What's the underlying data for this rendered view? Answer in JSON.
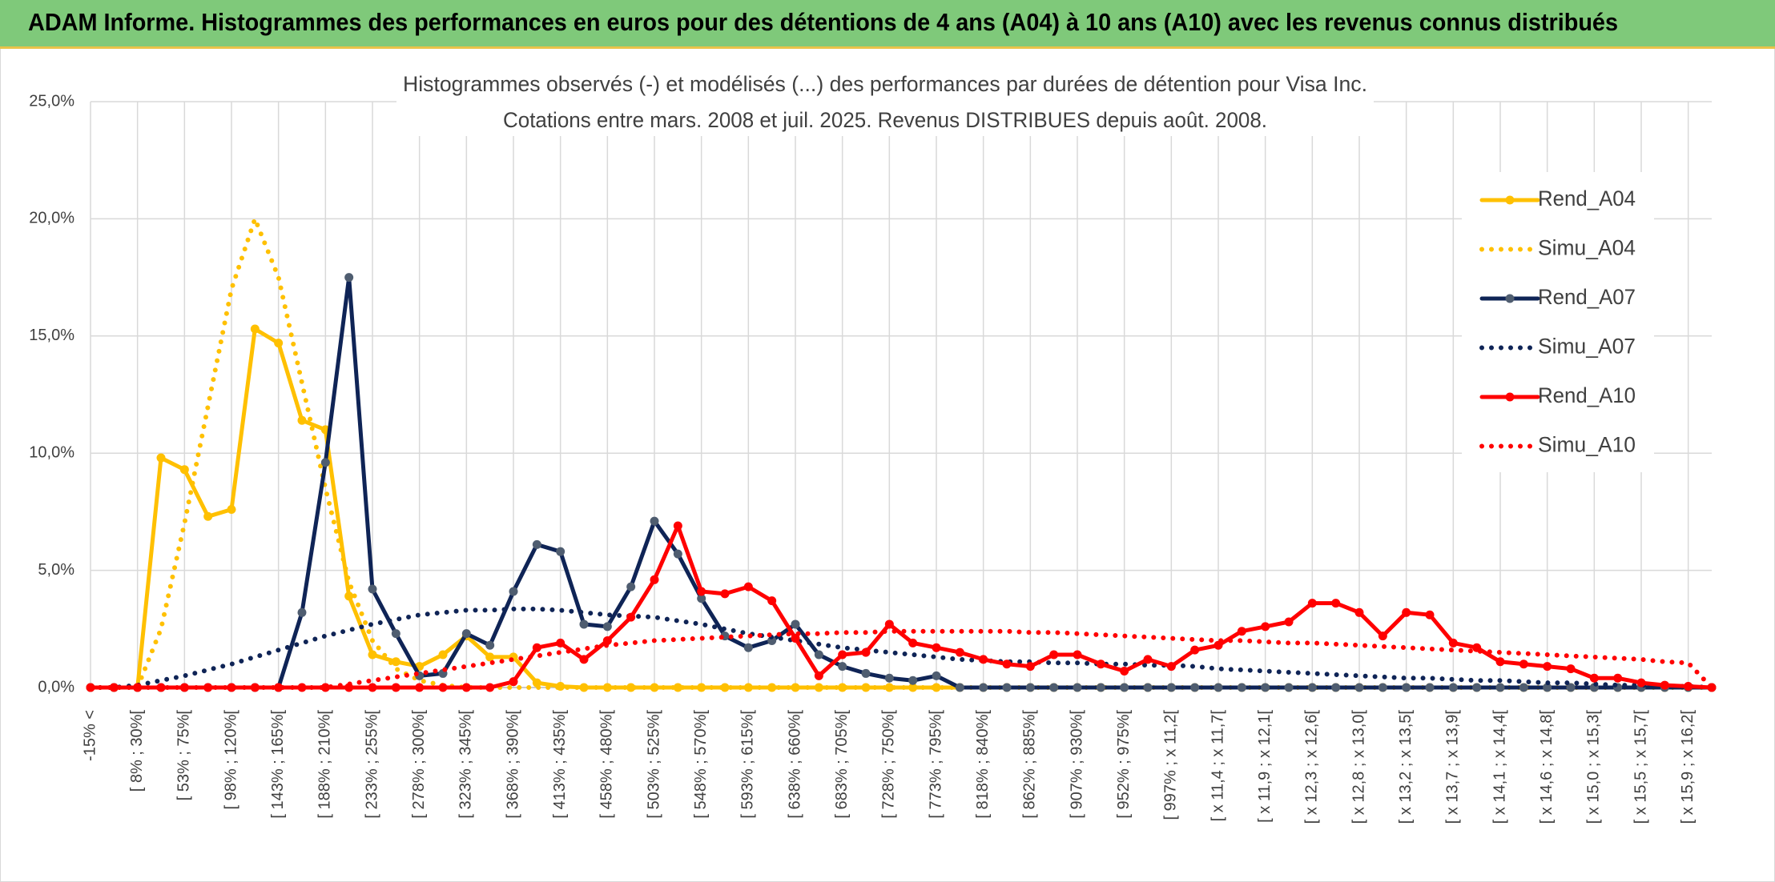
{
  "header": {
    "title": "ADAM Informe. Histogrammes des performances en euros pour des détentions de 4 ans (A04) à 10 ans (A10) avec les revenus connus distribués"
  },
  "chart_data": {
    "type": "line",
    "title": "Histogrammes observés (-) et modélisés (...) des performances par durées de détention pour Visa Inc.",
    "subtitle": "Cotations entre mars. 2008 et juil. 2025. Revenus DISTRIBUES depuis août. 2008.",
    "categories": [
      "-15% <",
      null,
      "[ 8% ; 30%[",
      null,
      "[ 53% ; 75%[",
      null,
      "[ 98% ; 120%[",
      null,
      "[ 143% ; 165%[",
      null,
      "[ 188% ; 210%[",
      null,
      "[ 233% ; 255%[",
      null,
      "[ 278% ; 300%[",
      null,
      "[ 323% ; 345%[",
      null,
      "[ 368% ; 390%[",
      null,
      "[ 413% ; 435%[",
      null,
      "[ 458% ; 480%[",
      null,
      "[ 503% ; 525%[",
      null,
      "[ 548% ; 570%[",
      null,
      "[ 593% ; 615%[",
      null,
      "[ 638% ; 660%[",
      null,
      "[ 683% ; 705%[",
      null,
      "[ 728% ; 750%[",
      null,
      "[ 773% ; 795%[",
      null,
      "[ 818% ; 840%[",
      null,
      "[ 862% ; 885%[",
      null,
      "[ 907% ; 930%[",
      null,
      "[ 952% ; 975%[",
      null,
      "[ 997% ; x 11,2[",
      null,
      "[ x 11,4 ; x 11,7[",
      null,
      "[ x 11,9 ; x 12,1[",
      null,
      "[ x 12,3 ; x 12,6[",
      null,
      "[ x 12,8 ; x 13,0[",
      null,
      "[ x 13,2 ; x 13,5[",
      null,
      "[ x 13,7 ; x 13,9[",
      null,
      "[ x 14,1 ; x 14,4[",
      null,
      "[ x 14,6 ; x 14,8[",
      null,
      "[ x 15,0 ; x 15,3[",
      null,
      "[ x 15,5 ; x 15,7[",
      null,
      "[ x 15,9 ; x 16,2[",
      null
    ],
    "ylim": [
      0,
      25
    ],
    "yticks": [
      {
        "value": 0,
        "label": "0,0%"
      },
      {
        "value": 5,
        "label": "5,0%"
      },
      {
        "value": 10,
        "label": "10,0%"
      },
      {
        "value": 15,
        "label": "15,0%"
      },
      {
        "value": 20,
        "label": "20,0%"
      },
      {
        "value": 25,
        "label": "25,0%"
      }
    ],
    "grid": true,
    "legend": "right",
    "series": [
      {
        "name": "Rend_A04",
        "color": "#ffc000",
        "line_style": "solid",
        "marker_color": "#ffc000",
        "values": [
          0,
          0,
          0,
          9.8,
          9.3,
          7.3,
          7.6,
          15.3,
          14.7,
          11.4,
          11.0,
          3.9,
          1.4,
          1.1,
          0.9,
          1.4,
          2.2,
          1.3,
          1.3,
          0.2,
          0.05,
          0,
          0,
          0,
          0,
          0,
          0,
          0,
          0,
          0,
          0,
          0,
          0,
          0,
          0,
          0,
          0,
          0,
          0,
          0,
          0,
          0,
          0,
          0,
          0,
          0,
          0,
          0,
          0,
          0,
          0,
          0,
          0,
          0,
          0,
          0,
          0,
          0,
          0,
          0,
          0,
          0,
          0,
          0,
          0,
          0,
          0,
          0,
          0,
          0
        ]
      },
      {
        "name": "Simu_A04",
        "color": "#ffc000",
        "line_style": "dotted",
        "values": [
          0,
          0,
          0,
          2.5,
          7,
          12,
          17,
          20,
          17.5,
          13,
          8.5,
          4.5,
          2,
          0.8,
          0.3,
          0.1,
          0,
          0,
          0,
          0,
          0,
          0,
          0,
          0,
          0,
          0,
          0,
          0,
          0,
          0,
          0,
          0,
          0,
          0,
          0,
          0,
          0,
          0,
          0,
          0,
          0,
          0,
          0,
          0,
          0,
          0,
          0,
          0,
          0,
          0,
          0,
          0,
          0,
          0,
          0,
          0,
          0,
          0,
          0,
          0,
          0,
          0,
          0,
          0,
          0,
          0,
          0,
          0,
          0,
          0
        ]
      },
      {
        "name": "Rend_A07",
        "color": "#0f2456",
        "line_style": "solid",
        "marker_color": "#4f5d70",
        "values": [
          0,
          0,
          0,
          0,
          0,
          0,
          0,
          0,
          0,
          3.2,
          9.6,
          17.5,
          4.2,
          2.3,
          0.5,
          0.6,
          2.3,
          1.8,
          4.1,
          6.1,
          5.8,
          2.7,
          2.6,
          4.3,
          7.1,
          5.7,
          3.8,
          2.2,
          1.7,
          2.0,
          2.7,
          1.4,
          0.9,
          0.6,
          0.4,
          0.3,
          0.5,
          0,
          0,
          0,
          0,
          0,
          0,
          0,
          0,
          0,
          0,
          0,
          0,
          0,
          0,
          0,
          0,
          0,
          0,
          0,
          0,
          0,
          0,
          0,
          0,
          0,
          0,
          0,
          0,
          0,
          0,
          0,
          0,
          0
        ]
      },
      {
        "name": "Simu_A07",
        "color": "#0f2456",
        "line_style": "dotted",
        "values": [
          0,
          0,
          0.1,
          0.3,
          0.5,
          0.75,
          1.0,
          1.3,
          1.6,
          1.9,
          2.2,
          2.45,
          2.7,
          2.9,
          3.1,
          3.2,
          3.3,
          3.3,
          3.35,
          3.35,
          3.3,
          3.2,
          3.1,
          3.05,
          3.0,
          2.85,
          2.7,
          2.5,
          2.3,
          2.15,
          2.0,
          1.85,
          1.7,
          1.6,
          1.5,
          1.4,
          1.3,
          1.2,
          1.15,
          1.1,
          1.1,
          1.05,
          1.05,
          1.0,
          1.0,
          0.95,
          0.95,
          0.9,
          0.8,
          0.75,
          0.7,
          0.65,
          0.6,
          0.55,
          0.5,
          0.45,
          0.4,
          0.4,
          0.35,
          0.3,
          0.3,
          0.25,
          0.2,
          0.2,
          0.15,
          0.1,
          0.1,
          0.05,
          0.05,
          0
        ]
      },
      {
        "name": "Rend_A10",
        "color": "#ff0000",
        "line_style": "solid",
        "marker_color": "#ff0000",
        "values": [
          0,
          0,
          0,
          0,
          0,
          0,
          0,
          0,
          0,
          0,
          0,
          0,
          0,
          0,
          0,
          0,
          0,
          0,
          0.25,
          1.7,
          1.9,
          1.2,
          2.0,
          3.0,
          4.6,
          6.9,
          4.1,
          4.0,
          4.3,
          3.7,
          2.1,
          0.5,
          1.4,
          1.5,
          2.7,
          1.9,
          1.7,
          1.5,
          1.2,
          1.0,
          0.9,
          1.4,
          1.4,
          1.0,
          0.7,
          1.2,
          0.9,
          1.6,
          1.8,
          2.4,
          2.6,
          2.8,
          3.6,
          3.6,
          3.2,
          2.2,
          3.2,
          3.1,
          1.9,
          1.7,
          1.1,
          1.0,
          0.9,
          0.8,
          0.4,
          0.4,
          0.2,
          0.1,
          0.05,
          0
        ]
      },
      {
        "name": "Simu_A10",
        "color": "#ff0000",
        "line_style": "dotted",
        "values": [
          0,
          0,
          0,
          0,
          0,
          0,
          0,
          0,
          0,
          0,
          0,
          0.15,
          0.3,
          0.45,
          0.6,
          0.75,
          0.9,
          1.05,
          1.2,
          1.35,
          1.5,
          1.65,
          1.8,
          1.9,
          2.0,
          2.05,
          2.1,
          2.15,
          2.2,
          2.25,
          2.3,
          2.3,
          2.35,
          2.35,
          2.4,
          2.4,
          2.4,
          2.4,
          2.4,
          2.4,
          2.35,
          2.35,
          2.3,
          2.25,
          2.2,
          2.15,
          2.1,
          2.05,
          2.0,
          2.0,
          1.95,
          1.9,
          1.9,
          1.85,
          1.8,
          1.75,
          1.7,
          1.65,
          1.6,
          1.55,
          1.5,
          1.45,
          1.4,
          1.35,
          1.3,
          1.25,
          1.2,
          1.1,
          1.05,
          0
        ]
      }
    ]
  }
}
